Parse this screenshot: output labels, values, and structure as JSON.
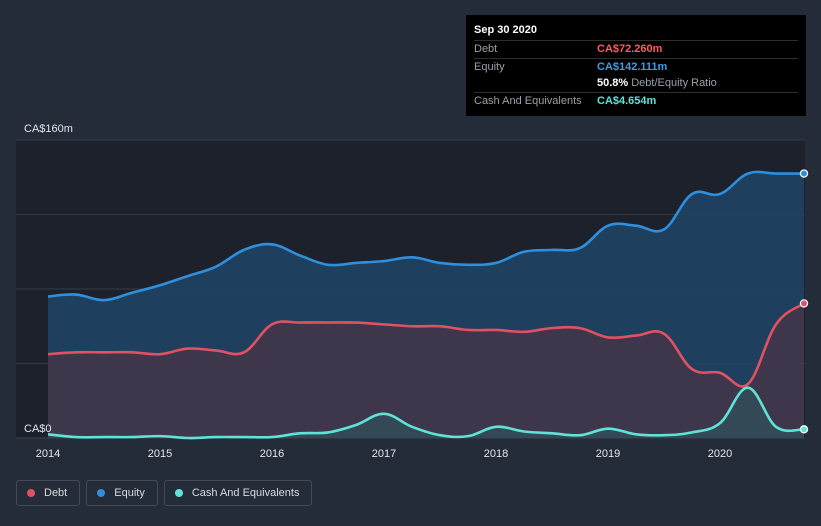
{
  "tooltip": {
    "date": "Sep 30 2020",
    "rows": {
      "debt": {
        "label": "Debt",
        "value": "CA$72.260m"
      },
      "equity": {
        "label": "Equity",
        "value": "CA$142.111m"
      },
      "ratio": {
        "value": "50.8%",
        "label": "Debt/Equity Ratio"
      },
      "cash": {
        "label": "Cash And Equivalents",
        "value": "CA$4.654m"
      }
    }
  },
  "legend": {
    "debt": "Debt",
    "equity": "Equity",
    "cash": "Cash And Equivalents"
  },
  "colors": {
    "debt": "#e05263",
    "equity": "#2f8fdc",
    "cash": "#5fe3d8"
  },
  "chart_data": {
    "type": "area",
    "y_top_label": "CA$160m",
    "y_bottom_label": "CA$0",
    "ylim": [
      0,
      160
    ],
    "xlim": [
      2014,
      2020.75
    ],
    "x_ticks": [
      "2014",
      "2015",
      "2016",
      "2017",
      "2018",
      "2019",
      "2020"
    ],
    "series": [
      {
        "name": "Equity",
        "x": [
          2014.0,
          2014.25,
          2014.5,
          2014.75,
          2015.0,
          2015.25,
          2015.5,
          2015.75,
          2016.0,
          2016.25,
          2016.5,
          2016.75,
          2017.0,
          2017.25,
          2017.5,
          2017.75,
          2018.0,
          2018.25,
          2018.5,
          2018.75,
          2019.0,
          2019.25,
          2019.5,
          2019.75,
          2020.0,
          2020.25,
          2020.5,
          2020.75
        ],
        "values": [
          76,
          77,
          74,
          78,
          82,
          87,
          92,
          101,
          104,
          98,
          93,
          94,
          95,
          97,
          94,
          93,
          94,
          100,
          101,
          102,
          114,
          114,
          112,
          131,
          131,
          142,
          142,
          142
        ]
      },
      {
        "name": "Debt",
        "x": [
          2014.0,
          2014.25,
          2014.5,
          2014.75,
          2015.0,
          2015.25,
          2015.5,
          2015.75,
          2016.0,
          2016.25,
          2016.5,
          2016.75,
          2017.0,
          2017.25,
          2017.5,
          2017.75,
          2018.0,
          2018.25,
          2018.5,
          2018.75,
          2019.0,
          2019.25,
          2019.5,
          2019.75,
          2020.0,
          2020.25,
          2020.5,
          2020.75
        ],
        "values": [
          45,
          46,
          46,
          46,
          45,
          48,
          47,
          46,
          61,
          62,
          62,
          62,
          61,
          60,
          60,
          58,
          58,
          57,
          59,
          59,
          54,
          55,
          56,
          37,
          35,
          29,
          61,
          72.26
        ]
      },
      {
        "name": "Cash And Equivalents",
        "x": [
          2014.0,
          2014.25,
          2014.5,
          2014.75,
          2015.0,
          2015.25,
          2015.5,
          2015.75,
          2016.0,
          2016.25,
          2016.5,
          2016.75,
          2017.0,
          2017.25,
          2017.5,
          2017.75,
          2018.0,
          2018.25,
          2018.5,
          2018.75,
          2019.0,
          2019.25,
          2019.5,
          2019.75,
          2020.0,
          2020.25,
          2020.5,
          2020.75
        ],
        "values": [
          2,
          0.5,
          0.5,
          0.5,
          1,
          0,
          0.5,
          0.5,
          0.5,
          2.5,
          3,
          7,
          13,
          6,
          1.5,
          1,
          6,
          3.5,
          2.5,
          1.5,
          5,
          2,
          1.5,
          3,
          8,
          27,
          6,
          4.654
        ]
      }
    ],
    "grid": true,
    "legend_position": "bottom-left"
  }
}
